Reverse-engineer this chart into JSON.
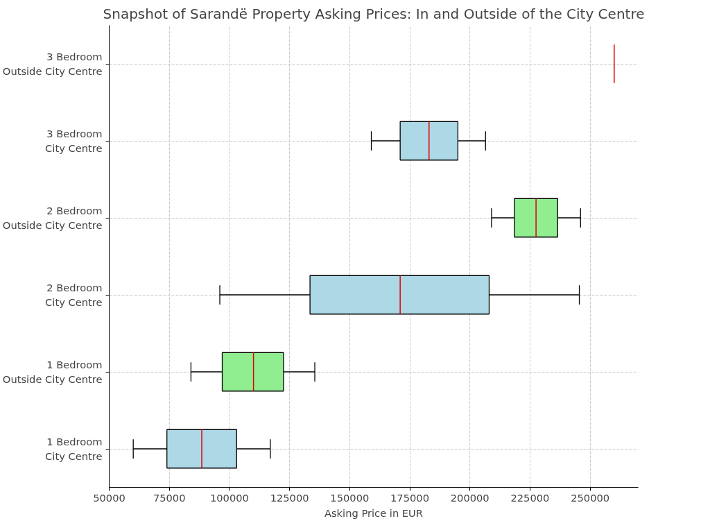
{
  "chart_data": {
    "type": "box",
    "orientation": "horizontal",
    "title": "Snapshot of Sarandë Property Asking Prices: In and Outside of the City Centre",
    "xlabel": "Asking Price in EUR",
    "categories": [
      "3 Bedroom\nOutside City Centre",
      "3 Bedroom\nCity Centre",
      "2 Bedroom\nOutside City Centre",
      "2 Bedroom\nCity Centre",
      "1 Bedroom\nOutside City Centre",
      "1 Bedroom\nCity Centre"
    ],
    "colors": [
      null,
      "#add8e6",
      "#90ee90",
      "#add8e6",
      "#90ee90",
      "#add8e6"
    ],
    "boxes": [
      {
        "low": 260000,
        "q1": 260000,
        "median": 260000,
        "q3": 260000,
        "high": 260000
      },
      {
        "low": 159000,
        "q1": 171000,
        "median": 183000,
        "q3": 195000,
        "high": 206500
      },
      {
        "low": 209000,
        "q1": 218500,
        "median": 227500,
        "q3": 236500,
        "high": 246000
      },
      {
        "low": 96000,
        "q1": 133500,
        "median": 171000,
        "q3": 208000,
        "high": 245500
      },
      {
        "low": 84000,
        "q1": 97000,
        "median": 110000,
        "q3": 122500,
        "high": 135500
      },
      {
        "low": 60000,
        "q1": 74000,
        "median": 88500,
        "q3": 103000,
        "high": 117000
      }
    ],
    "xlim": [
      50000,
      270000
    ],
    "xticks": [
      50000,
      75000,
      100000,
      125000,
      150000,
      175000,
      200000,
      225000,
      250000
    ],
    "grid": true
  }
}
